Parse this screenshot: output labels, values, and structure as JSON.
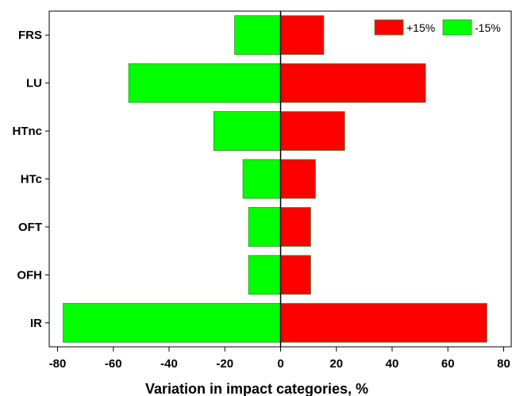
{
  "chart_data": {
    "type": "bar",
    "orientation": "horizontal",
    "title": "",
    "xlabel": "Variation in impact categories, %",
    "ylabel": "",
    "categories": [
      "FRS",
      "LU",
      "HTnc",
      "HTc",
      "OFT",
      "OFH",
      "IR"
    ],
    "series": [
      {
        "name": "+15%",
        "color": "#ff0000",
        "values": [
          15.5,
          52.0,
          23.0,
          12.5,
          10.8,
          10.8,
          74.0
        ]
      },
      {
        "name": "-15%",
        "color": "#00ff00",
        "values": [
          -16.5,
          -54.5,
          -24.0,
          -13.5,
          -11.5,
          -11.5,
          -78.0
        ]
      }
    ],
    "xlim": [
      -83,
      83
    ],
    "xticks": [
      -80,
      -60,
      -40,
      -20,
      0,
      20,
      40,
      60,
      80
    ],
    "grid": false,
    "legend_position": "top-right"
  }
}
